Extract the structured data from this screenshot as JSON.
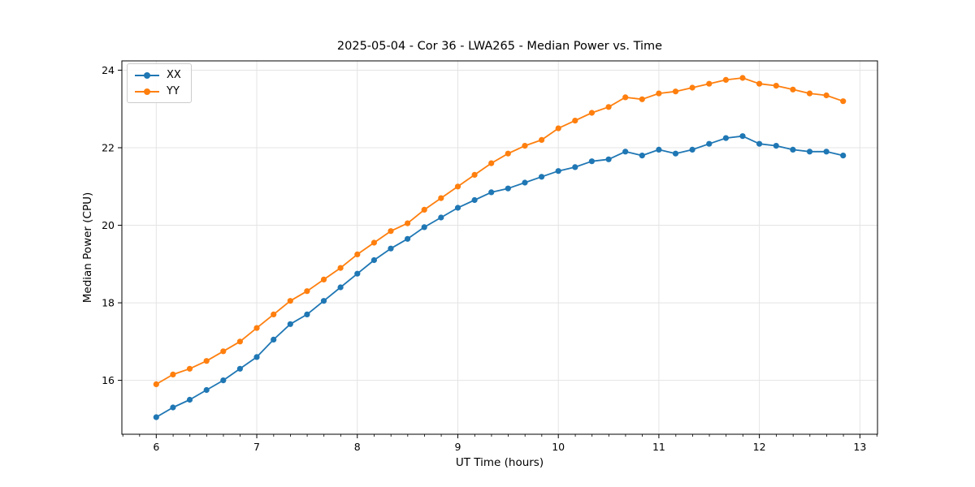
{
  "chart_data": {
    "type": "line",
    "title": "2025-05-04 - Cor 36 - LWA265 - Median Power vs. Time",
    "xlabel": "UT Time (hours)",
    "ylabel": "Median Power (CPU)",
    "xlim": [
      5.658,
      13.175
    ],
    "ylim": [
      14.61,
      24.24
    ],
    "xticks": [
      6,
      7,
      8,
      9,
      10,
      11,
      12,
      13
    ],
    "yticks": [
      16,
      18,
      20,
      22,
      24
    ],
    "x_minor_tick_step": 0.1667,
    "grid": true,
    "legend_position": "upper left",
    "background_color": "#ffffff",
    "grid_color": "#e4e4e4",
    "x": [
      6.0,
      6.1667,
      6.3333,
      6.5,
      6.6667,
      6.8333,
      7.0,
      7.1667,
      7.3333,
      7.5,
      7.6667,
      7.8333,
      8.0,
      8.1667,
      8.3333,
      8.5,
      8.6667,
      8.8333,
      9.0,
      9.1667,
      9.3333,
      9.5,
      9.6667,
      9.8333,
      10.0,
      10.1667,
      10.3333,
      10.5,
      10.6667,
      10.8333,
      11.0,
      11.1667,
      11.3333,
      11.5,
      11.6667,
      11.8333,
      12.0,
      12.1667,
      12.3333,
      12.5,
      12.6667,
      12.8333
    ],
    "series": [
      {
        "name": "XX",
        "color": "#1f77b4",
        "values": [
          15.05,
          15.3,
          15.5,
          15.75,
          16.0,
          16.3,
          16.6,
          17.05,
          17.45,
          17.7,
          18.05,
          18.4,
          18.75,
          19.1,
          19.4,
          19.65,
          19.95,
          20.2,
          20.45,
          20.65,
          20.85,
          20.95,
          21.1,
          21.25,
          21.4,
          21.5,
          21.65,
          21.7,
          21.9,
          21.8,
          21.95,
          21.85,
          21.95,
          22.1,
          22.25,
          22.3,
          22.1,
          22.05,
          21.95,
          21.9,
          21.9,
          21.8
        ]
      },
      {
        "name": "YY",
        "color": "#ff7f0e",
        "values": [
          15.9,
          16.15,
          16.3,
          16.5,
          16.75,
          17.0,
          17.35,
          17.7,
          18.05,
          18.3,
          18.6,
          18.9,
          19.25,
          19.55,
          19.85,
          20.05,
          20.4,
          20.7,
          21.0,
          21.3,
          21.6,
          21.85,
          22.05,
          22.2,
          22.5,
          22.7,
          22.9,
          23.05,
          23.3,
          23.25,
          23.4,
          23.45,
          23.55,
          23.65,
          23.75,
          23.8,
          23.65,
          23.6,
          23.5,
          23.4,
          23.35,
          23.2
        ]
      }
    ]
  }
}
